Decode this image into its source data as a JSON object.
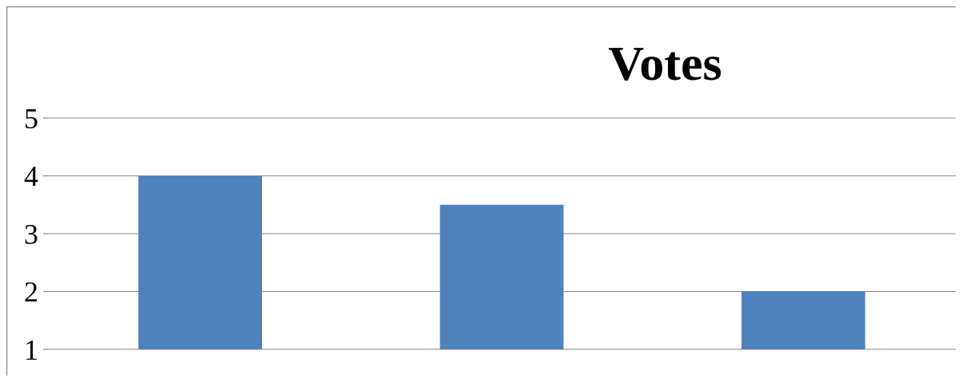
{
  "chart_data": {
    "type": "bar",
    "title": "Votes",
    "categories": [
      null,
      null,
      null
    ],
    "values": [
      4,
      3.5,
      2
    ],
    "color": "#4f81bd",
    "ylim": [
      1,
      5
    ],
    "yticks": [
      1,
      2,
      3,
      4,
      5
    ],
    "grid": "y"
  }
}
